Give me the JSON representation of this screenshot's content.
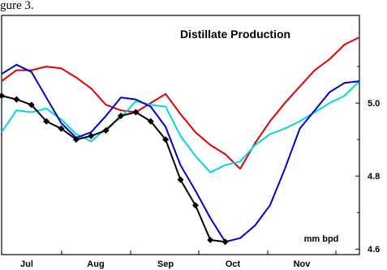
{
  "header_fragment": "gure 3.",
  "chart_data": {
    "type": "line",
    "title": "Distillate Production",
    "unit_label": "mm bpd",
    "xlabel": "",
    "ylabel": "",
    "x_tick_labels": [
      "Jul",
      "Aug",
      "Sep",
      "Oct",
      "Nov"
    ],
    "y_tick_labels": [
      "5.0",
      "4.8",
      "4.6"
    ],
    "y_ticks": [
      5.0,
      4.8,
      4.6
    ],
    "ylim": [
      4.585,
      5.24
    ],
    "xlim": [
      0,
      24
    ],
    "y_axis_side": "right",
    "grid": false,
    "series": [
      {
        "color": "#e00000",
        "marker": "none",
        "x": [
          0,
          1,
          2,
          3,
          4,
          5,
          6,
          7,
          8,
          9,
          10,
          11,
          12,
          13,
          14,
          15,
          16,
          17,
          18,
          19,
          20,
          21,
          22,
          23,
          24
        ],
        "y": [
          5.06,
          5.09,
          5.09,
          5.1,
          5.095,
          5.07,
          5.04,
          4.995,
          4.98,
          4.975,
          5.0,
          5.025,
          4.97,
          4.92,
          4.885,
          4.86,
          4.82,
          4.89,
          4.95,
          5.0,
          5.045,
          5.09,
          5.12,
          5.16,
          5.18
        ]
      },
      {
        "color": "#00d8e0",
        "marker": "none",
        "x": [
          0,
          1,
          2,
          3,
          4,
          5,
          6,
          7,
          8,
          9,
          10,
          11,
          12,
          13,
          14,
          15,
          16,
          17,
          18,
          19,
          20,
          21,
          22,
          23,
          24
        ],
        "y": [
          4.92,
          4.98,
          4.975,
          4.985,
          4.955,
          4.915,
          4.895,
          4.93,
          4.96,
          5.005,
          4.995,
          4.99,
          4.91,
          4.855,
          4.81,
          4.83,
          4.84,
          4.885,
          4.915,
          4.93,
          4.95,
          4.975,
          5.0,
          5.02,
          5.06
        ]
      },
      {
        "color": "#0000cc",
        "marker": "none",
        "x": [
          0,
          1,
          2,
          3,
          4,
          5,
          6,
          7,
          8,
          9,
          10,
          11,
          12,
          13,
          14,
          15,
          16,
          17,
          18,
          19,
          20,
          21,
          22,
          23,
          24
        ],
        "y": [
          5.08,
          5.105,
          5.085,
          5.015,
          4.945,
          4.905,
          4.92,
          4.965,
          5.015,
          5.01,
          4.99,
          4.935,
          4.83,
          4.76,
          4.685,
          4.62,
          4.63,
          4.665,
          4.72,
          4.82,
          4.93,
          4.98,
          5.03,
          5.055,
          5.06
        ]
      },
      {
        "color": "#000000",
        "marker": "diamond",
        "x": [
          0,
          1,
          2,
          3,
          4,
          5,
          6,
          7,
          8,
          9,
          10,
          11,
          12,
          13,
          14,
          15,
          16,
          17,
          18,
          19,
          20,
          21,
          22,
          23,
          24
        ],
        "y": [
          5.02,
          5.01,
          4.995,
          4.95,
          4.93,
          4.9,
          4.91,
          4.925,
          4.965,
          4.975,
          4.95,
          4.9,
          4.79,
          4.72,
          4.625,
          4.62,
          null,
          null,
          null,
          null,
          null,
          null,
          null,
          null,
          null
        ]
      }
    ]
  }
}
